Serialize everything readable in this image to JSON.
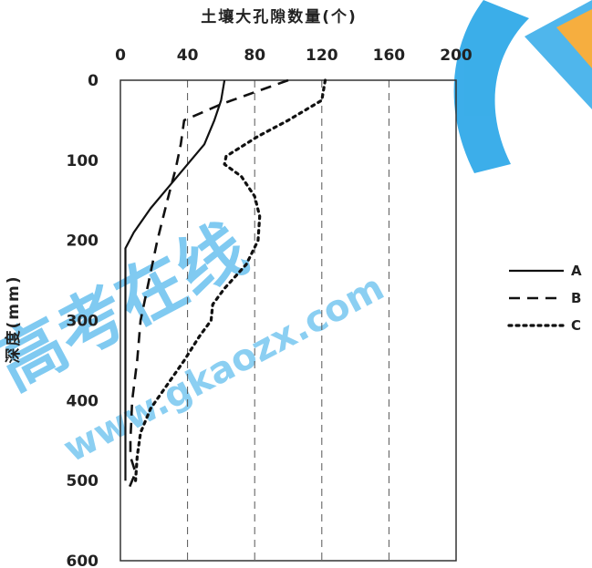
{
  "chart_data": {
    "type": "line",
    "title": "土壤大孔隙数量(个)",
    "xlabel": "土壤大孔隙数量(个)",
    "ylabel": "深度(mm)",
    "x_axis_position": "top",
    "y_axis_inverted": true,
    "xlim": [
      0,
      200
    ],
    "ylim": [
      0,
      600
    ],
    "xticks": [
      "0",
      "40",
      "80",
      "120",
      "160",
      "200"
    ],
    "yticks": [
      "0",
      "100",
      "200",
      "300",
      "400",
      "500",
      "600"
    ],
    "grid": "vertical dashed",
    "legend_position": "right",
    "series": [
      {
        "name": "A",
        "style": "solid",
        "points": [
          [
            62,
            0
          ],
          [
            60,
            25
          ],
          [
            56,
            50
          ],
          [
            50,
            80
          ],
          [
            42,
            100
          ],
          [
            30,
            130
          ],
          [
            18,
            160
          ],
          [
            8,
            190
          ],
          [
            3,
            210
          ],
          [
            3,
            300
          ],
          [
            3,
            400
          ],
          [
            3,
            500
          ]
        ]
      },
      {
        "name": "B",
        "style": "dashed",
        "points": [
          [
            100,
            0
          ],
          [
            60,
            30
          ],
          [
            38,
            50
          ],
          [
            36,
            80
          ],
          [
            33,
            110
          ],
          [
            28,
            150
          ],
          [
            22,
            200
          ],
          [
            17,
            250
          ],
          [
            12,
            300
          ],
          [
            10,
            350
          ],
          [
            7,
            400
          ],
          [
            6,
            450
          ],
          [
            6,
            470
          ],
          [
            9,
            490
          ],
          [
            5,
            510
          ]
        ]
      },
      {
        "name": "C",
        "style": "dotted",
        "points": [
          [
            122,
            0
          ],
          [
            120,
            25
          ],
          [
            100,
            50
          ],
          [
            82,
            70
          ],
          [
            63,
            95
          ],
          [
            62,
            105
          ],
          [
            72,
            120
          ],
          [
            80,
            145
          ],
          [
            83,
            170
          ],
          [
            82,
            200
          ],
          [
            75,
            230
          ],
          [
            62,
            260
          ],
          [
            55,
            280
          ],
          [
            54,
            300
          ],
          [
            47,
            320
          ],
          [
            38,
            350
          ],
          [
            28,
            380
          ],
          [
            18,
            410
          ],
          [
            12,
            440
          ],
          [
            10,
            470
          ],
          [
            9,
            500
          ]
        ]
      }
    ]
  },
  "watermark": {
    "main": "高考在线",
    "url": "www.gkaozx.com",
    "colors": {
      "blue": "#1aa0e6",
      "orange": "#f5a01e"
    }
  }
}
